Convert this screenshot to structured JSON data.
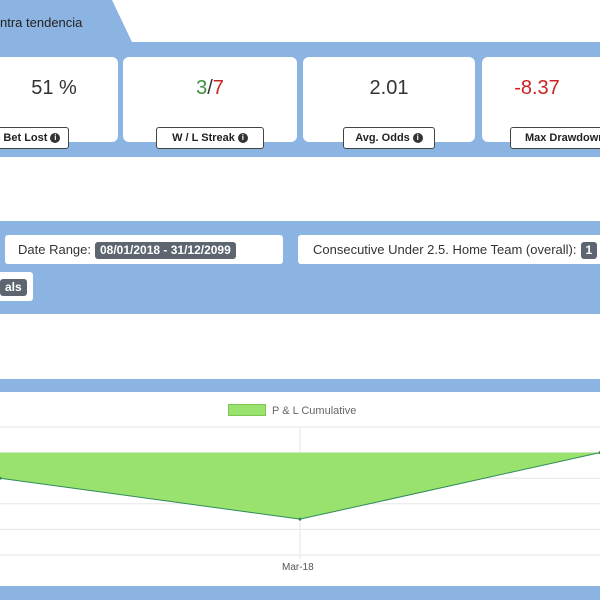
{
  "header": {
    "tab_title": "ntra tendencia"
  },
  "stats": [
    {
      "value": "51 %",
      "label": "% Bet Lost"
    },
    {
      "value_win": "3",
      "value_sep": "/",
      "value_loss": "7",
      "label": "W / L Streak"
    },
    {
      "value": "2.01",
      "label": "Avg. Odds"
    },
    {
      "value": "-8.37",
      "label": "Max Drawdown"
    }
  ],
  "filters": {
    "date_range_label": "Date Range:",
    "date_range_value": "08/01/2018 - 31/12/2099",
    "consecutive_label": "Consecutive Under 2.5. Home Team (overall):",
    "consecutive_value": "1",
    "goals_tag": "als"
  },
  "colors": {
    "band": "#8cb4e2",
    "area_fill": "#99e26e",
    "win": "#3f8f3f",
    "loss": "#cc2222"
  },
  "chart_data": {
    "type": "area",
    "title": "",
    "legend": "P & L Cumulative",
    "legend_position": "top",
    "x_tick_labels": [
      "Mar-18"
    ],
    "series": [
      {
        "name": "P & L Cumulative",
        "x": [
          0,
          1,
          2
        ],
        "values": [
          -1,
          -2.6,
          0
        ]
      }
    ],
    "ylim": [
      -4,
      1
    ],
    "grid": true
  }
}
